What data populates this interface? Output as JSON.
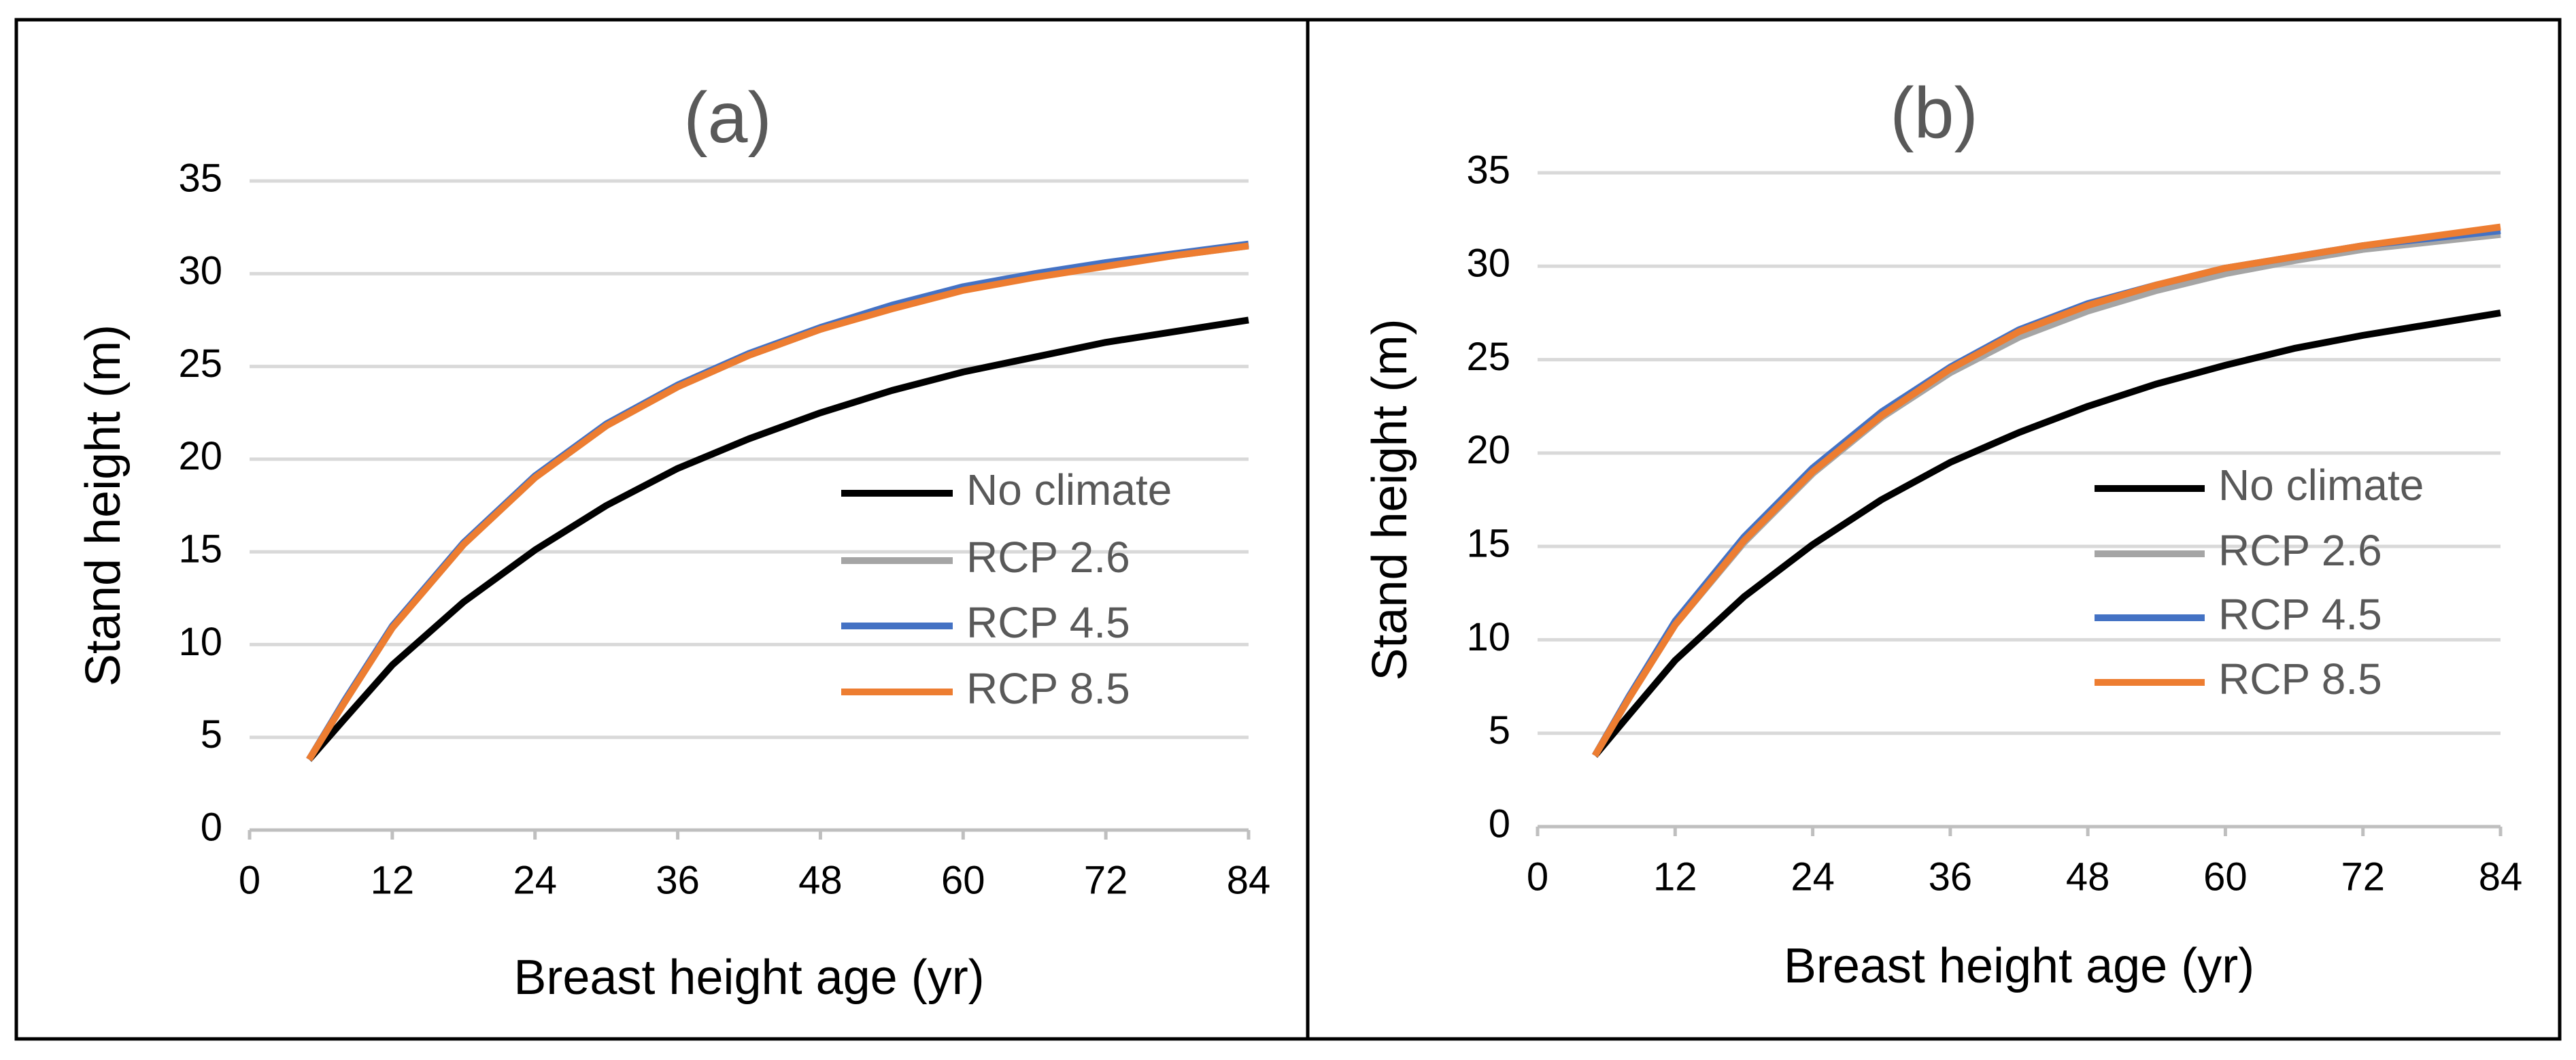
{
  "chart_data": [
    {
      "type": "line",
      "title": "(a)",
      "x_label": "Breast height age (yr)",
      "y_label": "Stand height (m)",
      "x": [
        5,
        8,
        12,
        18,
        24,
        30,
        36,
        42,
        48,
        54,
        60,
        66,
        72,
        78,
        84
      ],
      "series": [
        {
          "name": "No climate",
          "color": "#000000",
          "values": [
            3.8,
            6.0,
            8.9,
            12.3,
            15.1,
            17.5,
            19.5,
            21.1,
            22.5,
            23.7,
            24.7,
            25.5,
            26.3,
            26.9,
            27.5
          ]
        },
        {
          "name": "RCP 2.6",
          "color": "#a5a5a5",
          "values": [
            3.8,
            6.9,
            10.9,
            15.4,
            19.0,
            21.8,
            23.9,
            25.6,
            27.0,
            28.2,
            29.2,
            29.9,
            30.5,
            31.0,
            31.5
          ]
        },
        {
          "name": "RCP 4.5",
          "color": "#4472c4",
          "values": [
            3.8,
            7.0,
            11.0,
            15.5,
            19.1,
            21.9,
            24.0,
            25.7,
            27.1,
            28.3,
            29.3,
            30.0,
            30.6,
            31.1,
            31.6
          ]
        },
        {
          "name": "RCP 8.5",
          "color": "#ed7d31",
          "values": [
            3.8,
            6.9,
            10.9,
            15.4,
            19.0,
            21.8,
            23.9,
            25.6,
            27.0,
            28.1,
            29.1,
            29.8,
            30.4,
            31.0,
            31.5
          ]
        }
      ],
      "xlim": [
        0,
        84
      ],
      "xticks": [
        0,
        12,
        24,
        36,
        48,
        60,
        72,
        84
      ],
      "ylim": [
        0,
        35
      ],
      "yticks": [
        0,
        5,
        10,
        15,
        20,
        25,
        30,
        35
      ],
      "grid": true
    },
    {
      "type": "line",
      "title": "(b)",
      "x_label": "Breast height age (yr)",
      "y_label": "Stand height (m)",
      "x": [
        5,
        8,
        12,
        18,
        24,
        30,
        36,
        42,
        48,
        54,
        60,
        66,
        72,
        78,
        84
      ],
      "series": [
        {
          "name": "No climate",
          "color": "#000000",
          "values": [
            3.8,
            6.0,
            8.9,
            12.3,
            15.1,
            17.5,
            19.5,
            21.1,
            22.5,
            23.7,
            24.7,
            25.6,
            26.3,
            26.9,
            27.5
          ]
        },
        {
          "name": "RCP 2.6",
          "color": "#a5a5a5",
          "values": [
            3.8,
            6.9,
            10.8,
            15.2,
            18.9,
            21.9,
            24.3,
            26.2,
            27.6,
            28.7,
            29.6,
            30.3,
            30.9,
            31.3,
            31.7
          ]
        },
        {
          "name": "RCP 4.5",
          "color": "#4472c4",
          "values": [
            3.8,
            7.0,
            11.0,
            15.5,
            19.2,
            22.2,
            24.6,
            26.6,
            28.0,
            29.0,
            29.9,
            30.5,
            31.1,
            31.5,
            31.9
          ]
        },
        {
          "name": "RCP 8.5",
          "color": "#ed7d31",
          "values": [
            3.8,
            6.9,
            10.8,
            15.3,
            19.0,
            22.0,
            24.5,
            26.5,
            27.9,
            29.0,
            29.9,
            30.5,
            31.1,
            31.6,
            32.1
          ]
        }
      ],
      "xlim": [
        0,
        84
      ],
      "xticks": [
        0,
        12,
        24,
        36,
        48,
        60,
        72,
        84
      ],
      "ylim": [
        0,
        35
      ],
      "yticks": [
        0,
        5,
        10,
        15,
        20,
        25,
        30,
        35
      ],
      "grid": true
    }
  ]
}
